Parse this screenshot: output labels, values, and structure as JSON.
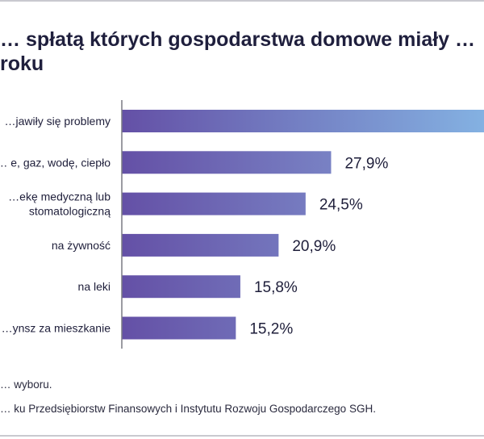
{
  "header": {
    "title_line1": "… spłatą których gospodarstwa domowe miały …",
    "title_line2": "roku"
  },
  "footer": {
    "note": "… wyboru.",
    "source": "… ku Przedsiębiorstw Finansowych i Instytutu Rozwoju Gospodarczego SGH."
  },
  "colors": {
    "bar_start": "#6450a6",
    "bar_end_top": "#86b8e6",
    "bar_end": "#7e8fcc",
    "axis": "#7a7a84",
    "text": "#1e1e3a"
  },
  "chart_data": {
    "type": "bar",
    "orientation": "horizontal",
    "categories": [
      [
        "…jawiły się problemy"
      ],
      [
        "… e, gaz, wodę, ciepło"
      ],
      [
        "…ekę medyczną lub",
        "stomatologiczną"
      ],
      [
        "na żywność"
      ],
      [
        "na leki"
      ],
      [
        "…ynsz za mieszkanie"
      ]
    ],
    "values": [
      null,
      27.9,
      24.5,
      20.9,
      15.8,
      15.2
    ],
    "value_labels": [
      "",
      "27,9%",
      "24,5%",
      "20,9%",
      "15,8%",
      "15,2%"
    ],
    "first_bar_note": "value label cut off at right edge",
    "xlim": [
      0,
      100
    ],
    "grid": false,
    "legend": "none"
  }
}
